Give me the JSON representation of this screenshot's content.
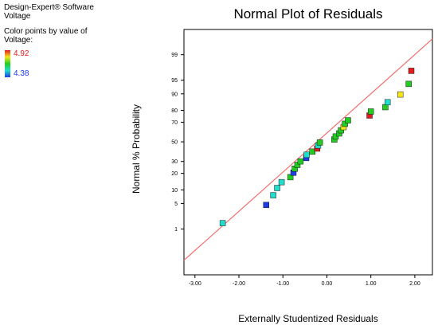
{
  "software": "Design-Expert® Software",
  "response": "Voltage",
  "color_legend": {
    "label_line1": "Color points by value of",
    "label_line2": "Voltage:",
    "max_value": "4.92",
    "min_value": "4.38",
    "max_color": "#e41a1c",
    "min_color": "#1e3ce6"
  },
  "chart_data": {
    "type": "scatter",
    "title": "Normal Plot of Residuals",
    "xlabel": "Externally Studentized Residuals",
    "ylabel": "Normal % Probability",
    "xlim": [
      -3.25,
      2.4
    ],
    "x_ticks": [
      -3,
      -2,
      -1,
      0,
      1,
      2
    ],
    "x_tick_labels": [
      "-3.00",
      "-2.00",
      "-1.00",
      "0.00",
      "1.00",
      "2.00"
    ],
    "y_scale": "normal-probability",
    "y_ticks": [
      1,
      5,
      10,
      20,
      30,
      50,
      70,
      80,
      90,
      95,
      99
    ],
    "y_tick_labels": [
      "1",
      "5",
      "10",
      "20",
      "30",
      "50",
      "70",
      "80",
      "90",
      "95",
      "99"
    ],
    "reference_line": {
      "color": "#f26d6d",
      "x": [
        -3.25,
        2.4
      ],
      "y": [
        0.0785,
        99.7
      ]
    },
    "points": [
      {
        "x": -2.37,
        "y": 1.5,
        "color": "#22ddcc"
      },
      {
        "x": -1.38,
        "y": 4.6,
        "color": "#1e3ce6"
      },
      {
        "x": -1.22,
        "y": 7.7,
        "color": "#22ddcc"
      },
      {
        "x": -1.13,
        "y": 10.9,
        "color": "#22ddcc"
      },
      {
        "x": -1.03,
        "y": 14.1,
        "color": "#22ddcc"
      },
      {
        "x": -0.83,
        "y": 17.3,
        "color": "#22cc22"
      },
      {
        "x": -0.76,
        "y": 20.5,
        "color": "#1e3ce6"
      },
      {
        "x": -0.73,
        "y": 23.7,
        "color": "#22cc22"
      },
      {
        "x": -0.67,
        "y": 26.9,
        "color": "#22cc22"
      },
      {
        "x": -0.6,
        "y": 30.1,
        "color": "#22cc22"
      },
      {
        "x": -0.47,
        "y": 33.3,
        "color": "#1e3ce6"
      },
      {
        "x": -0.46,
        "y": 36.5,
        "color": "#22ddcc"
      },
      {
        "x": -0.33,
        "y": 39.7,
        "color": "#22cc22"
      },
      {
        "x": -0.22,
        "y": 42.9,
        "color": "#e41a1c"
      },
      {
        "x": -0.2,
        "y": 46.1,
        "color": "#22ddcc"
      },
      {
        "x": -0.16,
        "y": 49.3,
        "color": "#22cc22"
      },
      {
        "x": 0.17,
        "y": 52.5,
        "color": "#22cc22"
      },
      {
        "x": 0.2,
        "y": 55.7,
        "color": "#22cc22"
      },
      {
        "x": 0.28,
        "y": 58.9,
        "color": "#22cc22"
      },
      {
        "x": 0.32,
        "y": 62.1,
        "color": "#22cc22"
      },
      {
        "x": 0.38,
        "y": 65.3,
        "color": "#f5e61c"
      },
      {
        "x": 0.41,
        "y": 68.5,
        "color": "#22cc22"
      },
      {
        "x": 0.48,
        "y": 71.7,
        "color": "#22cc22"
      },
      {
        "x": 0.97,
        "y": 75.9,
        "color": "#e41a1c"
      },
      {
        "x": 1.0,
        "y": 79.1,
        "color": "#22cc22"
      },
      {
        "x": 1.33,
        "y": 82.3,
        "color": "#22cc22"
      },
      {
        "x": 1.38,
        "y": 85.5,
        "color": "#22ddcc"
      },
      {
        "x": 1.67,
        "y": 89.7,
        "color": "#f5e61c"
      },
      {
        "x": 1.86,
        "y": 93.9,
        "color": "#22cc22"
      },
      {
        "x": 1.92,
        "y": 97.1,
        "color": "#e41a1c"
      }
    ]
  }
}
